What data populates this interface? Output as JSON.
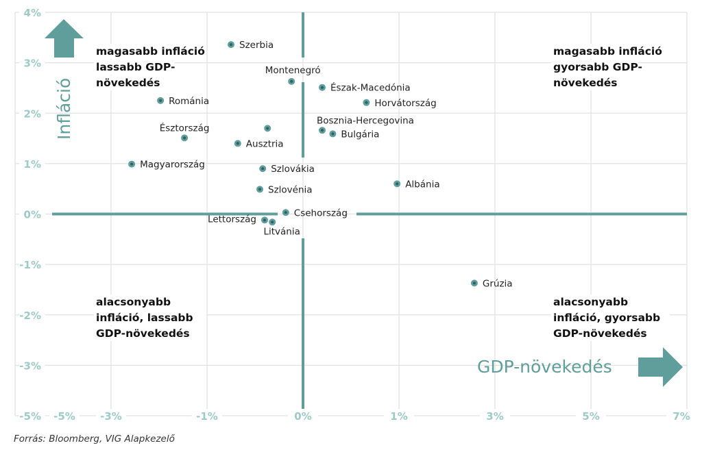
{
  "chart_data": {
    "type": "scatter",
    "xlabel": "GDP-növekedés",
    "ylabel": "Infláció",
    "x_ticks": [
      -5,
      -3,
      -1,
      0,
      1,
      3,
      5,
      7
    ],
    "x_tick_labels": [
      "-5%",
      "-3%",
      "-1%",
      "0%",
      "1%",
      "3%",
      "5%",
      "7%"
    ],
    "y_ticks": [
      4,
      3,
      2,
      1,
      0,
      -1,
      -2,
      -3,
      -5
    ],
    "y_tick_labels": [
      "4%",
      "3%",
      "2%",
      "1%",
      "0%",
      "-1%",
      "-2%",
      "-3%",
      "-5%"
    ],
    "grid": true,
    "colors": {
      "accent": "#5f9e9b",
      "tick": "#9ccac7",
      "grid": "#e2e2e2",
      "point_core": "#2e5f66"
    },
    "quadrants": {
      "top_left": [
        "magasabb infláció",
        "lassabb GDP-",
        "növekedés"
      ],
      "top_right": [
        "magasabb infláció",
        "gyorsabb GDP-",
        "növekedés"
      ],
      "bottom_left": [
        "alacsonyabb",
        "infláció, lassabb",
        "GDP-növekedés"
      ],
      "bottom_right": [
        "alacsonyabb",
        "infláció, gyorsabb",
        "GDP-növekedés"
      ]
    },
    "points": [
      {
        "label": "Szerbia",
        "x": -0.75,
        "y": 3.36,
        "pos": "right"
      },
      {
        "label": "Montenegró",
        "x": -0.12,
        "y": 2.63,
        "pos": "above-left"
      },
      {
        "label": "Észak-Macedónia",
        "x": 0.2,
        "y": 2.51,
        "pos": "right"
      },
      {
        "label": "Románia",
        "x": -1.97,
        "y": 2.25,
        "pos": "right"
      },
      {
        "label": "Horvátország",
        "x": 0.66,
        "y": 2.21,
        "pos": "right"
      },
      {
        "label": "",
        "x": -0.37,
        "y": 1.7,
        "pos": "right"
      },
      {
        "label": "Bosznia-Hercegovina",
        "x": 0.2,
        "y": 1.66,
        "pos": "above"
      },
      {
        "label": "Bulgária",
        "x": 0.31,
        "y": 1.59,
        "pos": "right"
      },
      {
        "label": "Észtország",
        "x": -1.47,
        "y": 1.51,
        "pos": "above"
      },
      {
        "label": "Ausztria",
        "x": -0.68,
        "y": 1.4,
        "pos": "right"
      },
      {
        "label": "Magyarország",
        "x": -2.57,
        "y": 0.99,
        "pos": "right"
      },
      {
        "label": "Szlovákia",
        "x": -0.42,
        "y": 0.9,
        "pos": "right"
      },
      {
        "label": "Albánia",
        "x": 0.98,
        "y": 0.6,
        "pos": "right"
      },
      {
        "label": "Szlovénia",
        "x": -0.45,
        "y": 0.49,
        "pos": "right"
      },
      {
        "label": "Csehország",
        "x": -0.18,
        "y": 0.03,
        "pos": "right"
      },
      {
        "label": "Lettország",
        "x": -0.4,
        "y": -0.12,
        "pos": "left"
      },
      {
        "label": "Litvánia",
        "x": -0.32,
        "y": -0.16,
        "pos": "below"
      },
      {
        "label": "Grúzia",
        "x": 2.57,
        "y": -1.37,
        "pos": "right"
      }
    ]
  },
  "source": "Forrás: Bloomberg, VIG Alapkezelő"
}
